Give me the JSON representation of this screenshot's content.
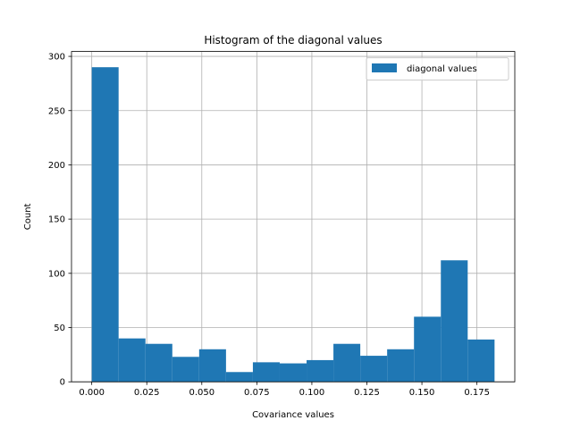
{
  "chart_data": {
    "type": "bar",
    "title": "Histogram of the diagonal values",
    "xlabel": "Covariance values",
    "ylabel": "Count",
    "xlim": [
      -0.0092,
      0.1922
    ],
    "ylim": [
      0,
      304.5
    ],
    "xticks": [
      0.0,
      0.025,
      0.05,
      0.075,
      0.1,
      0.125,
      0.15,
      0.175
    ],
    "xtick_labels": [
      "0.000",
      "0.025",
      "0.050",
      "0.075",
      "0.100",
      "0.125",
      "0.150",
      "0.175"
    ],
    "yticks": [
      0,
      50,
      100,
      150,
      200,
      250,
      300
    ],
    "ytick_labels": [
      "0",
      "50",
      "100",
      "150",
      "200",
      "250",
      "300"
    ],
    "grid": true,
    "legend_position": "upper right",
    "bin_edges": [
      0.0,
      0.0122,
      0.0244,
      0.0366,
      0.0488,
      0.061,
      0.0732,
      0.0854,
      0.0976,
      0.1098,
      0.122,
      0.1342,
      0.1464,
      0.1586,
      0.1708,
      0.183
    ],
    "series": [
      {
        "name": "diagonal values",
        "color": "#1f77b4",
        "values": [
          290,
          40,
          35,
          23,
          30,
          9,
          18,
          17,
          20,
          35,
          24,
          30,
          60,
          112,
          39
        ]
      }
    ]
  }
}
